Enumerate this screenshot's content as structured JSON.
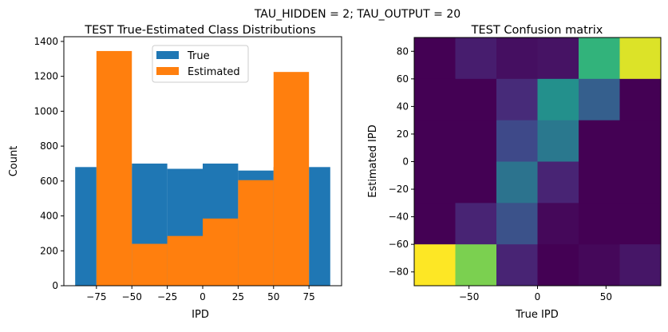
{
  "suptitle": "TAU_HIDDEN = 2; TAU_OUTPUT = 20",
  "chart_data": [
    {
      "type": "bar",
      "title": "TEST True-Estimated Class Distributions",
      "xlabel": "IPD",
      "ylabel": "Count",
      "xlim": [
        -98,
        98
      ],
      "ylim": [
        0,
        1427
      ],
      "xticks": [
        -75,
        -50,
        -25,
        0,
        25,
        50,
        75
      ],
      "yticks": [
        0,
        200,
        400,
        600,
        800,
        1000,
        1200,
        1400
      ],
      "legend": {
        "placement": "top-center",
        "entries": [
          "True",
          "Estimated"
        ]
      },
      "bin_edges": [
        -90,
        -75,
        -50,
        -25,
        0,
        25,
        50,
        75,
        90
      ],
      "series": [
        {
          "name": "True",
          "color": "#1f77b4",
          "values": [
            680,
            680,
            700,
            670,
            700,
            660,
            680,
            680
          ]
        },
        {
          "name": "Estimated",
          "color": "#ff7f0e",
          "values": [
            0,
            1345,
            240,
            285,
            385,
            605,
            1225,
            0
          ]
        }
      ]
    },
    {
      "type": "heatmap",
      "title": "TEST Confusion matrix",
      "xlabel": "True IPD",
      "ylabel": "Estimated IPD",
      "xlim": [
        -90,
        90
      ],
      "ylim": [
        -90,
        90
      ],
      "xticks": [
        -50,
        0,
        50
      ],
      "yticks": [
        -80,
        -60,
        -40,
        -20,
        0,
        20,
        40,
        60,
        80
      ],
      "colormap": "viridis",
      "rows_top_to_bottom": [
        [
          0,
          0.08,
          0.04,
          0.05,
          0.65,
          0.95
        ],
        [
          0,
          0,
          0.12,
          0.5,
          0.3,
          0
        ],
        [
          0,
          0,
          0.22,
          0.4,
          0,
          0
        ],
        [
          0,
          0,
          0.38,
          0.1,
          0,
          0
        ],
        [
          0,
          0.1,
          0.25,
          0.02,
          0,
          0
        ],
        [
          1.0,
          0.8,
          0.1,
          0,
          0.02,
          0.06
        ]
      ]
    }
  ]
}
